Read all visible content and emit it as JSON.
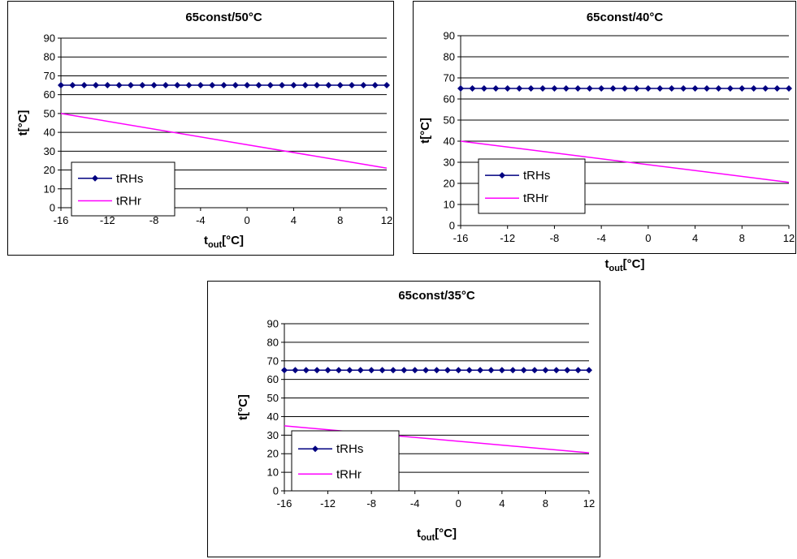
{
  "colors": {
    "series_supply": "#000080",
    "series_return": "#ff00ff",
    "gridline": "#000000",
    "background": "#ffffff"
  },
  "chart_data": [
    {
      "type": "line",
      "title": "65const/50°C",
      "xlabel": "t",
      "xlabel_sub": "out",
      "xlabel_unit": "[°C]",
      "ylabel": "t[°C]",
      "xlim": [
        -16,
        12
      ],
      "ylim": [
        0,
        90
      ],
      "xticks": [
        -16,
        -12,
        -8,
        -4,
        0,
        4,
        8,
        12
      ],
      "yticks": [
        0,
        10,
        20,
        30,
        40,
        50,
        60,
        70,
        80,
        90
      ],
      "grid": "horizontal",
      "legend_position": "bottom-left",
      "series": [
        {
          "name": "tRHs",
          "marker": "diamond",
          "color": "#000080",
          "x": [
            -16,
            -15,
            -14,
            -13,
            -12,
            -11,
            -10,
            -9,
            -8,
            -7,
            -6,
            -5,
            -4,
            -3,
            -2,
            -1,
            0,
            1,
            2,
            3,
            4,
            5,
            6,
            7,
            8,
            9,
            10,
            11,
            12
          ],
          "y": [
            65,
            65,
            65,
            65,
            65,
            65,
            65,
            65,
            65,
            65,
            65,
            65,
            65,
            65,
            65,
            65,
            65,
            65,
            65,
            65,
            65,
            65,
            65,
            65,
            65,
            65,
            65,
            65,
            65
          ]
        },
        {
          "name": "tRHr",
          "marker": "none",
          "color": "#ff00ff",
          "x": [
            -16,
            12
          ],
          "y": [
            50,
            21
          ]
        }
      ]
    },
    {
      "type": "line",
      "title": "65const/40°C",
      "xlabel": "t",
      "xlabel_sub": "out",
      "xlabel_unit": "[°C]",
      "ylabel": "t[°C]",
      "xlim": [
        -16,
        12
      ],
      "ylim": [
        0,
        90
      ],
      "xticks": [
        -16,
        -12,
        -8,
        -4,
        0,
        4,
        8,
        12
      ],
      "yticks": [
        0,
        10,
        20,
        30,
        40,
        50,
        60,
        70,
        80,
        90
      ],
      "grid": "horizontal",
      "legend_position": "bottom-left",
      "series": [
        {
          "name": "tRHs",
          "marker": "diamond",
          "color": "#000080",
          "x": [
            -16,
            -15,
            -14,
            -13,
            -12,
            -11,
            -10,
            -9,
            -8,
            -7,
            -6,
            -5,
            -4,
            -3,
            -2,
            -1,
            0,
            1,
            2,
            3,
            4,
            5,
            6,
            7,
            8,
            9,
            10,
            11,
            12
          ],
          "y": [
            65,
            65,
            65,
            65,
            65,
            65,
            65,
            65,
            65,
            65,
            65,
            65,
            65,
            65,
            65,
            65,
            65,
            65,
            65,
            65,
            65,
            65,
            65,
            65,
            65,
            65,
            65,
            65,
            65
          ]
        },
        {
          "name": "tRHr",
          "marker": "none",
          "color": "#ff00ff",
          "x": [
            -16,
            12
          ],
          "y": [
            40,
            20.5
          ]
        }
      ]
    },
    {
      "type": "line",
      "title": "65const/35°C",
      "xlabel": "t",
      "xlabel_sub": "out",
      "xlabel_unit": "[°C]",
      "ylabel": "t[°C]",
      "xlim": [
        -16,
        12
      ],
      "ylim": [
        0,
        90
      ],
      "xticks": [
        -16,
        -12,
        -8,
        -4,
        0,
        4,
        8,
        12
      ],
      "yticks": [
        0,
        10,
        20,
        30,
        40,
        50,
        60,
        70,
        80,
        90
      ],
      "grid": "horizontal",
      "legend_position": "bottom-left",
      "series": [
        {
          "name": "tRHs",
          "marker": "diamond",
          "color": "#000080",
          "x": [
            -16,
            -15,
            -14,
            -13,
            -12,
            -11,
            -10,
            -9,
            -8,
            -7,
            -6,
            -5,
            -4,
            -3,
            -2,
            -1,
            0,
            1,
            2,
            3,
            4,
            5,
            6,
            7,
            8,
            9,
            10,
            11,
            12
          ],
          "y": [
            65,
            65,
            65,
            65,
            65,
            65,
            65,
            65,
            65,
            65,
            65,
            65,
            65,
            65,
            65,
            65,
            65,
            65,
            65,
            65,
            65,
            65,
            65,
            65,
            65,
            65,
            65,
            65,
            65
          ]
        },
        {
          "name": "tRHr",
          "marker": "none",
          "color": "#ff00ff",
          "x": [
            -16,
            12
          ],
          "y": [
            35,
            20.5
          ]
        }
      ]
    }
  ]
}
